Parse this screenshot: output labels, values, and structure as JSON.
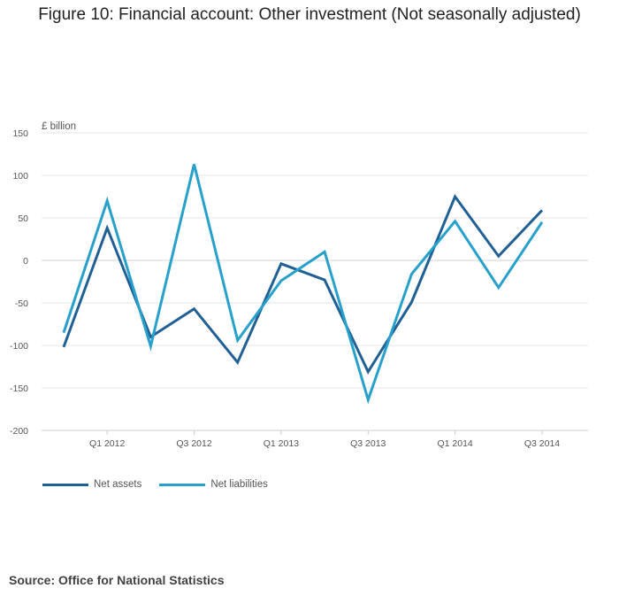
{
  "title": "Figure 10: Financial account: Other investment (Not seasonally adjusted)",
  "source": "Source: Office for National Statistics",
  "chart_data": {
    "type": "line",
    "x": [
      "Q4 2011",
      "Q1 2012",
      "Q2 2012",
      "Q3 2012",
      "Q4 2012",
      "Q1 2013",
      "Q2 2013",
      "Q3 2013",
      "Q4 2013",
      "Q1 2014",
      "Q2 2014",
      "Q3 2014"
    ],
    "x_tick_labels": [
      "",
      "Q1 2012",
      "",
      "Q3 2012",
      "",
      "Q1 2013",
      "",
      "Q3 2013",
      "",
      "Q1 2014",
      "",
      "Q3 2014"
    ],
    "ylabel": "£ billion",
    "ylim": [
      -200,
      150
    ],
    "yticks": [
      150,
      100,
      50,
      0,
      -50,
      -100,
      -150,
      -200
    ],
    "grid": true,
    "legend_position": "bottom-left",
    "series": [
      {
        "name": "Net assets",
        "color": "#206095",
        "values": [
          -102,
          38,
          -90,
          -57,
          -120,
          -4,
          -23,
          -131,
          -49,
          75,
          5,
          59
        ]
      },
      {
        "name": "Net liabilities",
        "color": "#27a0cc",
        "values": [
          -85,
          70,
          -101,
          113,
          -94,
          -24,
          10,
          -164,
          -16,
          46,
          -32,
          45
        ]
      }
    ]
  }
}
